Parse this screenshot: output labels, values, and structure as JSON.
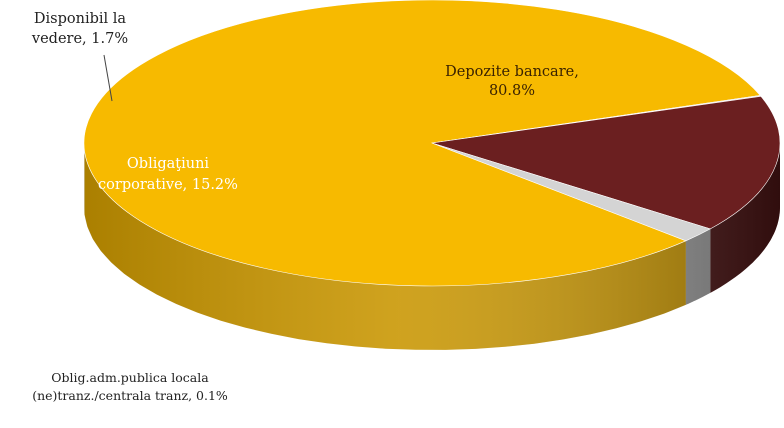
{
  "chart_data": {
    "type": "pie",
    "style": "3d",
    "slices": [
      {
        "label": "Depozite bancare, 80.8%",
        "label_lines": [
          "Depozite bancare,",
          "80.8%"
        ],
        "value": 80.8,
        "color": "#F7BA00",
        "side_color": "#C99600",
        "label_color": "#3a2200"
      },
      {
        "label": "Oblig.adm.publica locala (ne)tranz./centrala tranz, 0.1%",
        "label_lines": [
          "Oblig.adm.publica locala",
          "(ne)tranz./centrala tranz, 0.1%"
        ],
        "value": 0.1,
        "color": "#D9D9D9",
        "side_color": "#A0A0A0",
        "label_color": "#222222"
      },
      {
        "label": "Obligaţiuni corporative, 15.2%",
        "label_lines": [
          "Obligaţiuni",
          "corporative, 15.2%"
        ],
        "value": 15.2,
        "color": "#6B1F20",
        "side_color": "#4A1414",
        "label_color": "#ffffff"
      },
      {
        "label": "Disponibil la vedere, 1.7%",
        "label_lines": [
          "Disponibil la",
          "vedere, 1.7%"
        ],
        "value": 1.7,
        "color": "#D4D4D4",
        "side_color": "#9A9A9A",
        "label_color": "#222222"
      }
    ],
    "legend": "none"
  }
}
